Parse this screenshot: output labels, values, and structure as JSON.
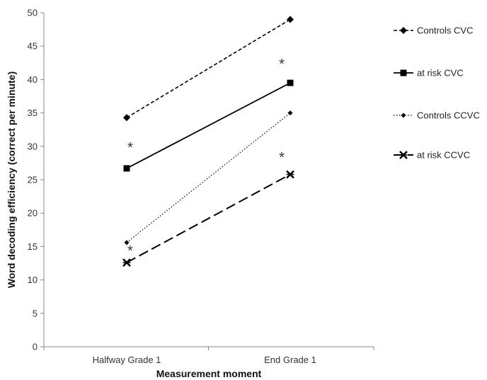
{
  "chart_data": {
    "type": "line",
    "categories": [
      "Halfway Grade 1",
      "End Grade 1"
    ],
    "xlabel": "Measurement moment",
    "ylabel": "Word decoding efficiency (correct per minute)",
    "ylim": [
      0,
      50
    ],
    "yticks": [
      0,
      5,
      10,
      15,
      20,
      25,
      30,
      35,
      40,
      45,
      50
    ],
    "grid": false,
    "legend_position": "right",
    "series": [
      {
        "name": "Controls CVC",
        "values": [
          34.3,
          49.0
        ],
        "marker": "diamond",
        "line": "dashed"
      },
      {
        "name": "at risk CVC",
        "values": [
          26.7,
          39.5
        ],
        "marker": "square",
        "line": "solid"
      },
      {
        "name": "Controls CCVC",
        "values": [
          15.6,
          35.0
        ],
        "marker": "small-diamond",
        "line": "dotted"
      },
      {
        "name": "at risk CCVC",
        "values": [
          12.6,
          25.8
        ],
        "marker": "star",
        "line": "long-dashed"
      }
    ],
    "annotations": [
      {
        "text": "*",
        "category": 0,
        "y": 30
      },
      {
        "text": "*",
        "category": 0,
        "y": 14.5
      },
      {
        "text": "*",
        "category": 1,
        "y": 42.5
      },
      {
        "text": "*",
        "category": 1,
        "y": 28.5
      }
    ]
  }
}
